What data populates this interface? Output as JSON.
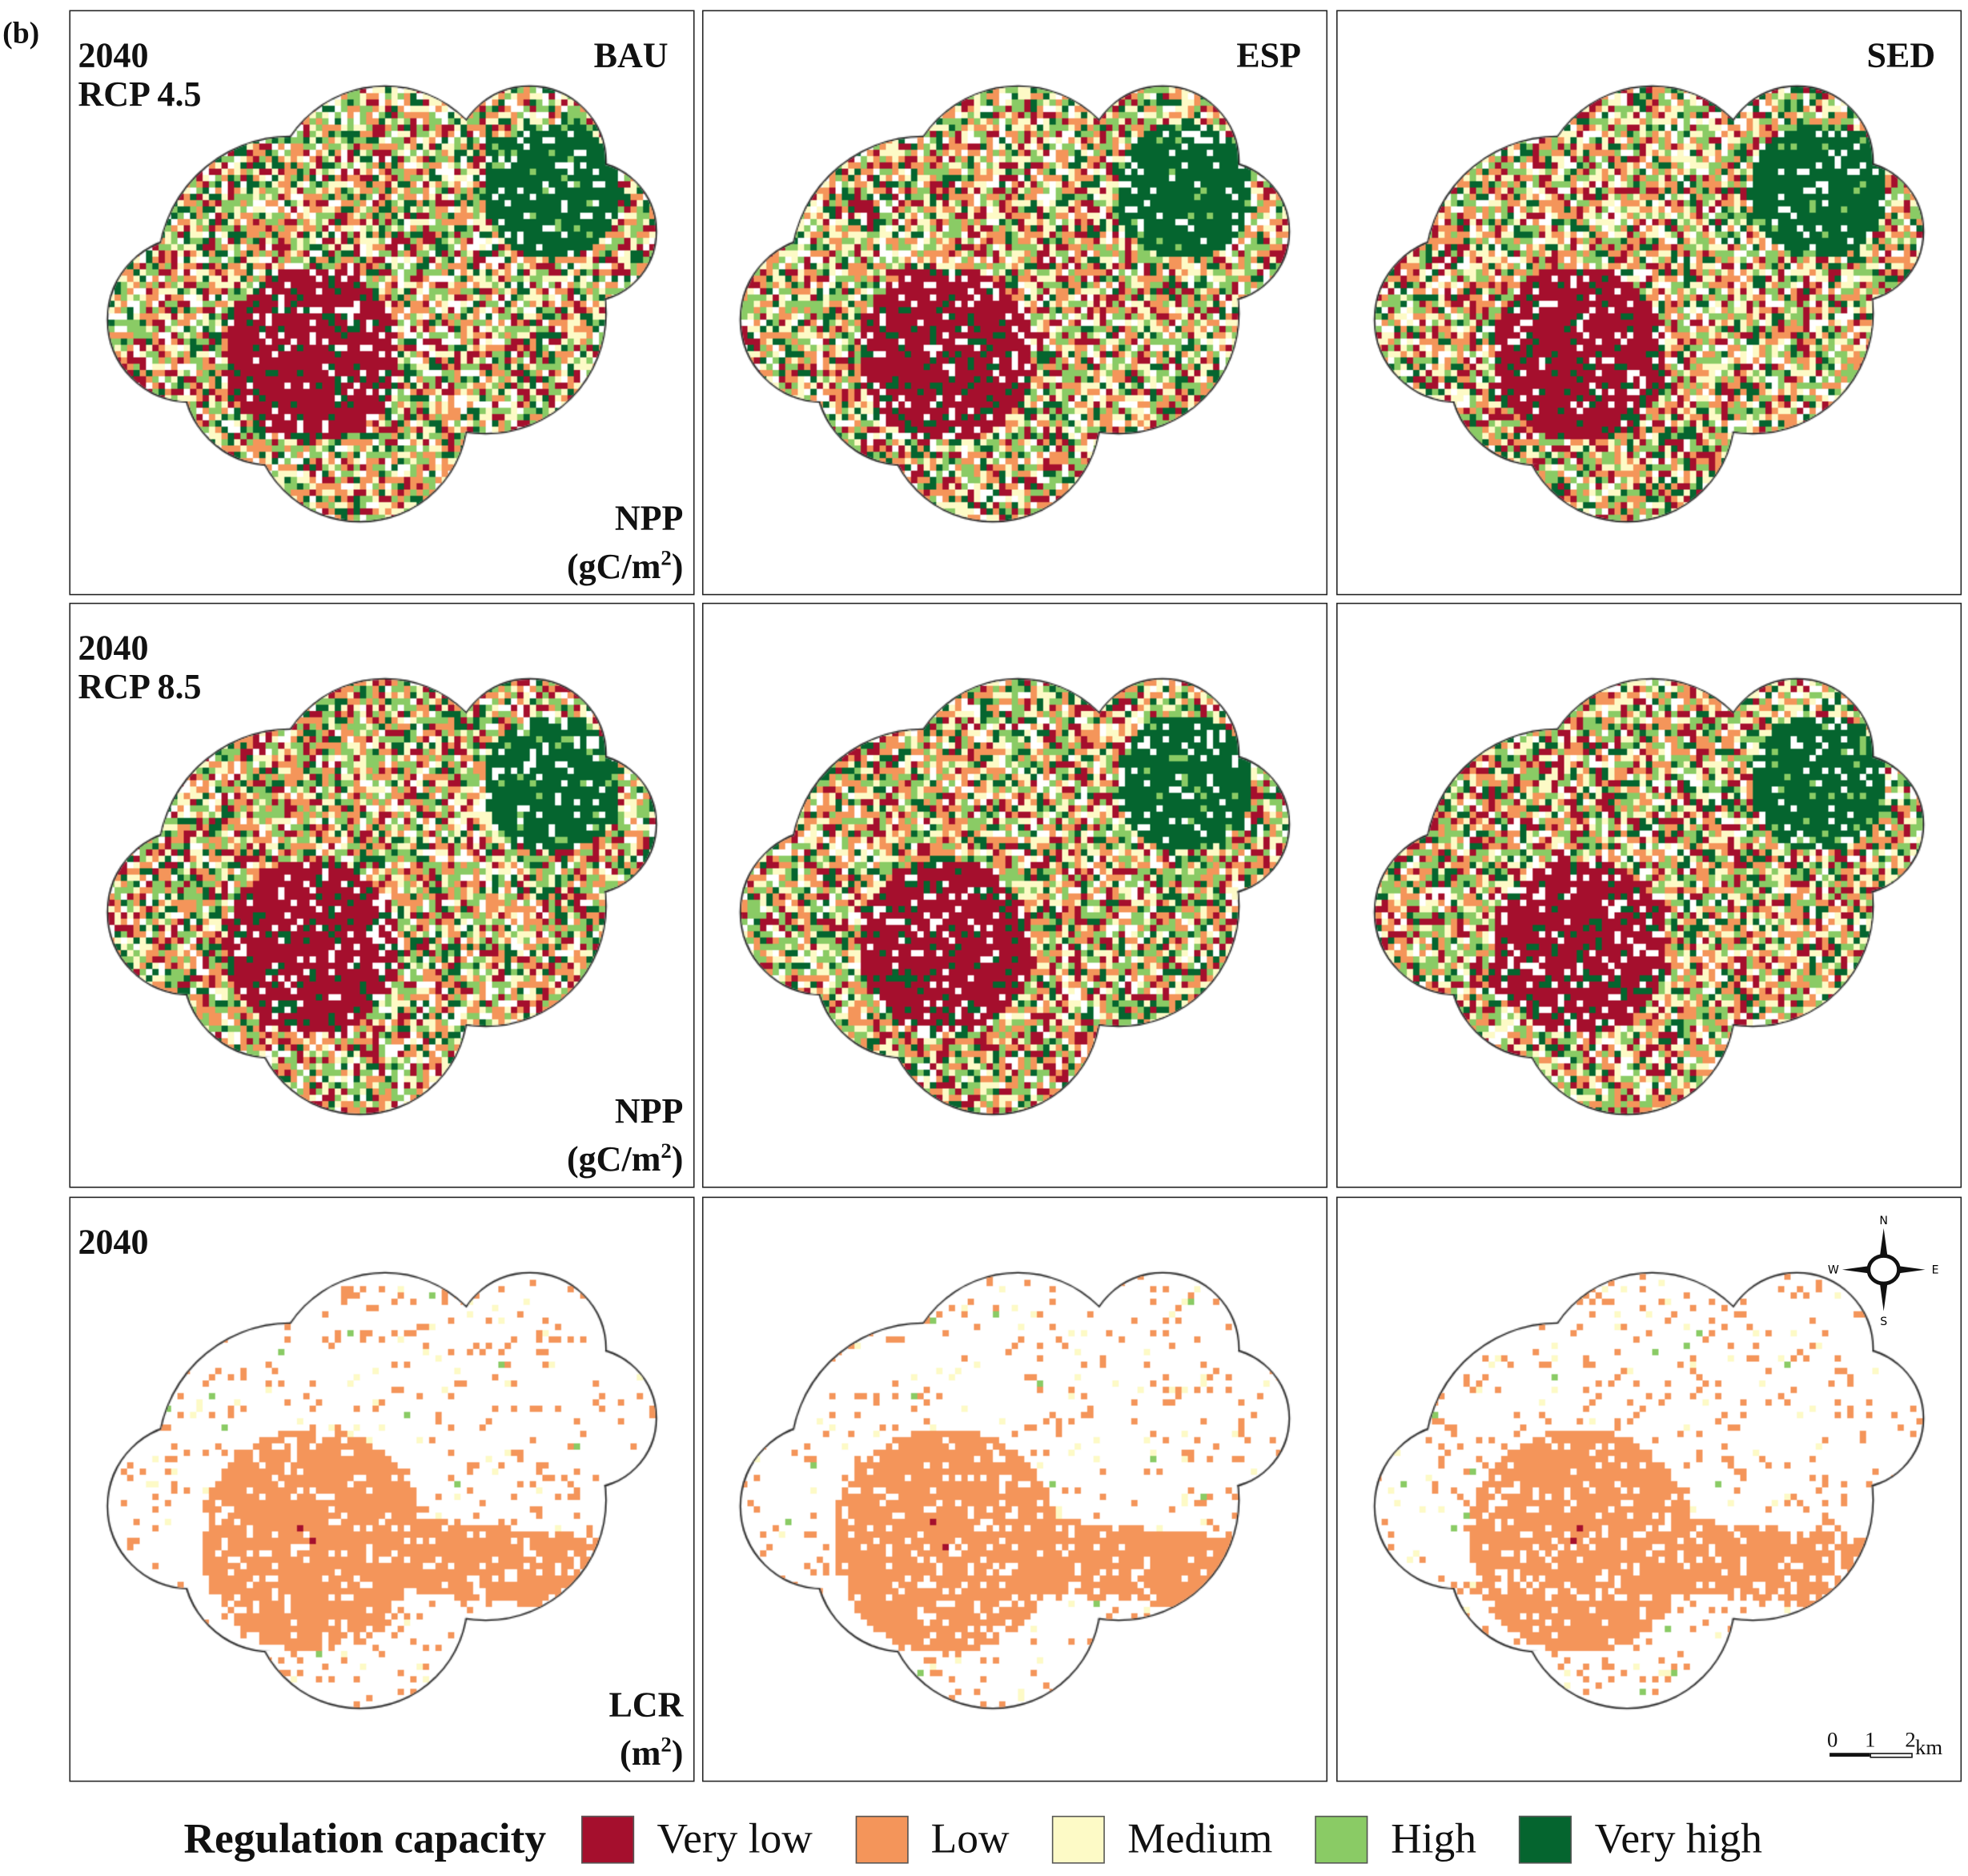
{
  "figure_tag": "(b)",
  "columns": [
    "BAU",
    "ESP",
    "SED"
  ],
  "rows": [
    {
      "year": "2040",
      "scenario": "RCP 4.5",
      "metric": "NPP",
      "unit": "(gC/m",
      "unit_sup": "2",
      "unit_end": ")",
      "kind": "npp"
    },
    {
      "year": "2040",
      "scenario": "RCP 8.5",
      "metric": "NPP",
      "unit": "(gC/m",
      "unit_sup": "2",
      "unit_end": ")",
      "kind": "npp"
    },
    {
      "year": "2040",
      "scenario": "",
      "metric": "LCR",
      "unit": "(m",
      "unit_sup": "2",
      "unit_end": ")",
      "kind": "lcr"
    }
  ],
  "compass": {
    "n": "N",
    "s": "S",
    "e": "E",
    "w": "W"
  },
  "scale_bar": {
    "t0": "0",
    "t1": "1",
    "t2": "2",
    "unit": "km"
  },
  "legend": {
    "title": "Regulation capacity",
    "items": [
      {
        "label": "Very low",
        "color": "#a50f2d"
      },
      {
        "label": "Low",
        "color": "#f4955a"
      },
      {
        "label": "Medium",
        "color": "#fdfac6"
      },
      {
        "label": "High",
        "color": "#8acb65"
      },
      {
        "label": "Very high",
        "color": "#05652f"
      }
    ]
  }
}
